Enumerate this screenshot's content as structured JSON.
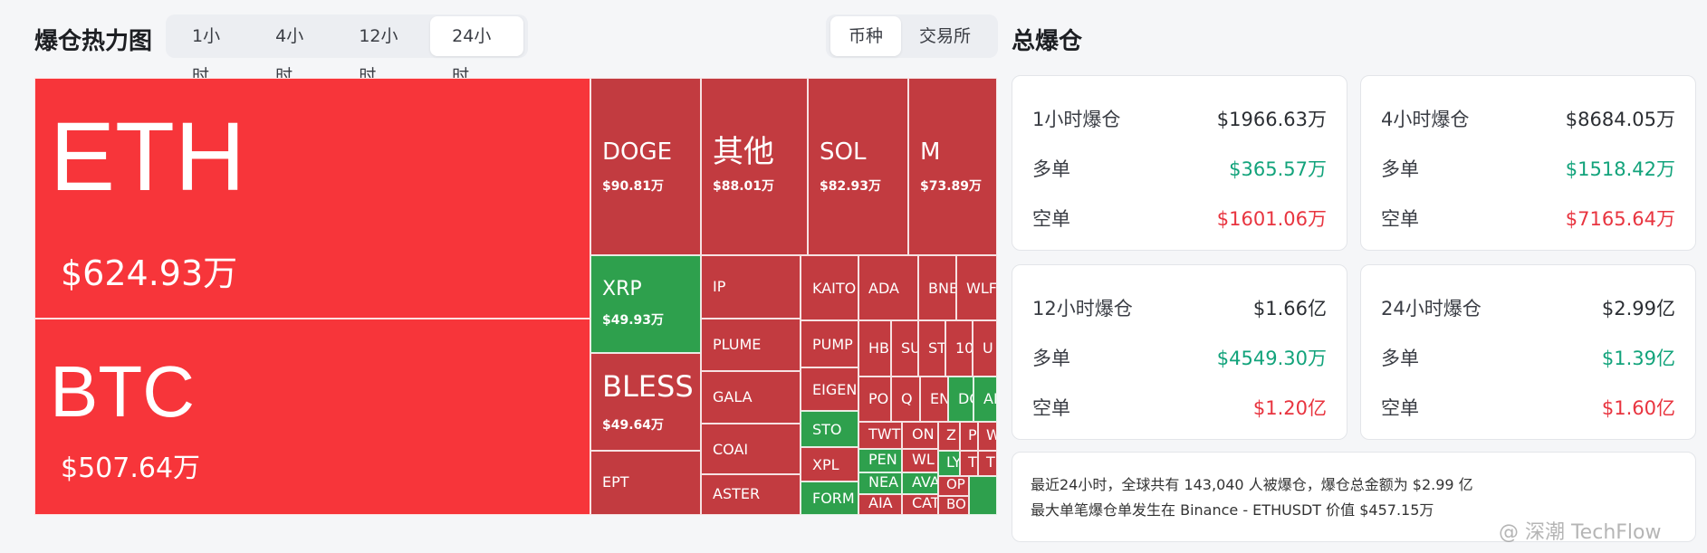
{
  "header": {
    "title": "爆仓热力图",
    "time_tabs": [
      {
        "label": "1小时",
        "active": false
      },
      {
        "label": "4小时",
        "active": false
      },
      {
        "label": "12小时",
        "active": false
      },
      {
        "label": "24小时",
        "active": true
      }
    ],
    "group_tabs": [
      {
        "label": "币种",
        "active": true
      },
      {
        "label": "交易所",
        "active": false
      }
    ],
    "total_title": "总爆仓"
  },
  "colors": {
    "red_big": "#f7353a",
    "red": "#c23b40",
    "green": "#2ea04d",
    "up": "#12a37b",
    "down": "#e8343f"
  },
  "tiles": [
    {
      "sym": "ETH",
      "val": "$624.93万",
      "c": "#f7353a",
      "big": true
    },
    {
      "sym": "BTC",
      "val": "$507.64万",
      "c": "#f7353a",
      "big": true
    },
    {
      "sym": "DOGE",
      "val": "$90.81万",
      "c": "#c23b40"
    },
    {
      "sym": "其他",
      "val": "$88.01万",
      "c": "#c23b40"
    },
    {
      "sym": "SOL",
      "val": "$82.93万",
      "c": "#c23b40"
    },
    {
      "sym": "M",
      "val": "$73.89万",
      "c": "#c23b40"
    },
    {
      "sym": "XRP",
      "val": "$49.93万",
      "c": "#2ea04d"
    },
    {
      "sym": "BLESS",
      "val": "$49.64万",
      "c": "#c23b40"
    },
    {
      "sym": "EPT",
      "c": "#c23b40"
    },
    {
      "sym": "IP",
      "c": "#c23b40"
    },
    {
      "sym": "PLUME",
      "c": "#c23b40"
    },
    {
      "sym": "GALA",
      "c": "#c23b40"
    },
    {
      "sym": "COAI",
      "c": "#c23b40"
    },
    {
      "sym": "ASTER",
      "c": "#c23b40"
    },
    {
      "sym": "KAITO",
      "c": "#c23b40"
    },
    {
      "sym": "PUMP",
      "c": "#c23b40"
    },
    {
      "sym": "EIGEN",
      "c": "#c23b40"
    },
    {
      "sym": "STO",
      "c": "#2ea04d"
    },
    {
      "sym": "XPL",
      "c": "#c23b40"
    },
    {
      "sym": "FORM",
      "c": "#2ea04d"
    },
    {
      "sym": "ADA",
      "c": "#c23b40"
    },
    {
      "sym": "BNB",
      "c": "#c23b40"
    },
    {
      "sym": "WLFI",
      "c": "#c23b40"
    },
    {
      "sym": "HB",
      "c": "#c23b40"
    },
    {
      "sym": "SU",
      "c": "#c23b40"
    },
    {
      "sym": "ST",
      "c": "#c23b40"
    },
    {
      "sym": "10",
      "c": "#c23b40"
    },
    {
      "sym": "U",
      "c": "#c23b40"
    },
    {
      "sym": "PO",
      "c": "#c23b40"
    },
    {
      "sym": "Q",
      "c": "#c23b40"
    },
    {
      "sym": "EN",
      "c": "#c23b40"
    },
    {
      "sym": "DO",
      "c": "#2ea04d"
    },
    {
      "sym": "AI",
      "c": "#2ea04d"
    },
    {
      "sym": "TWT",
      "c": "#c23b40"
    },
    {
      "sym": "ON",
      "c": "#c23b40"
    },
    {
      "sym": "PEN",
      "c": "#2ea04d"
    },
    {
      "sym": "WL",
      "c": "#c23b40"
    },
    {
      "sym": "NEA",
      "c": "#2ea04d"
    },
    {
      "sym": "AVA",
      "c": "#2ea04d"
    },
    {
      "sym": "AIA",
      "c": "#c23b40"
    },
    {
      "sym": "CAT",
      "c": "#c23b40"
    },
    {
      "sym": "Z",
      "c": "#c23b40"
    },
    {
      "sym": "P",
      "c": "#c23b40"
    },
    {
      "sym": "W",
      "c": "#c23b40"
    },
    {
      "sym": "LY",
      "c": "#2ea04d"
    },
    {
      "sym": "T",
      "c": "#c23b40"
    },
    {
      "sym": "T",
      "c": "#c23b40"
    },
    {
      "sym": "OP",
      "c": "#c23b40"
    },
    {
      "sym": "BO",
      "c": "#c23b40"
    },
    {
      "sym": "",
      "c": "#2ea04d"
    }
  ],
  "cards": [
    {
      "title": "1小时爆仓",
      "total": "$1966.63万",
      "long_label": "多单",
      "long": "$365.57万",
      "short_label": "空单",
      "short": "$1601.06万"
    },
    {
      "title": "4小时爆仓",
      "total": "$8684.05万",
      "long_label": "多单",
      "long": "$1518.42万",
      "short_label": "空单",
      "short": "$7165.64万"
    },
    {
      "title": "12小时爆仓",
      "total": "$1.66亿",
      "long_label": "多单",
      "long": "$4549.30万",
      "short_label": "空单",
      "short": "$1.20亿"
    },
    {
      "title": "24小时爆仓",
      "total": "$2.99亿",
      "long_label": "多单",
      "long": "$1.39亿",
      "short_label": "空单",
      "short": "$1.60亿"
    }
  ],
  "summary": {
    "line1": "最近24小时，全球共有 143,040 人被爆仓，爆仓总金额为 $2.99 亿",
    "line2": "最大单笔爆仓单发生在 Binance - ETHUSDT 价值 $457.15万"
  },
  "watermark": "@ 深潮 TechFlow"
}
